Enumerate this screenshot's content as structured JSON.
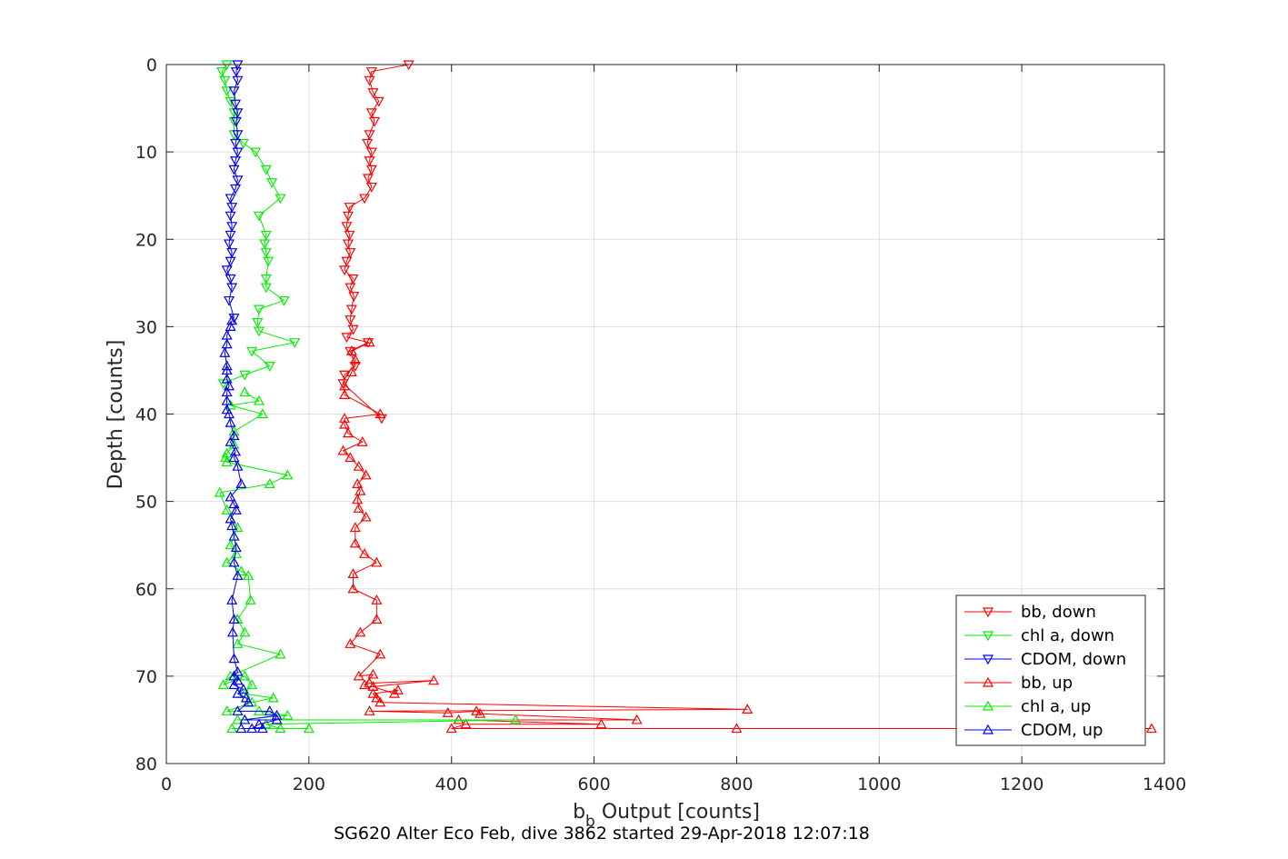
{
  "chart_data": {
    "type": "line",
    "xlabel_main": "b",
    "xlabel_sub": "b",
    "xlabel_rest": " Output [counts]",
    "ylabel": "Depth [counts]",
    "caption": "SG620 Alter Eco Feb, dive 3862 started 29-Apr-2018 12:07:18",
    "xlim": [
      0,
      1400
    ],
    "ylim": [
      0,
      80
    ],
    "y_reversed": true,
    "grid": true,
    "legend_position": "bottom-right",
    "xticks": [
      0,
      200,
      400,
      600,
      800,
      1000,
      1200,
      1400
    ],
    "yticks": [
      0,
      10,
      20,
      30,
      40,
      50,
      60,
      70,
      80
    ],
    "series": [
      {
        "name": "bb, down",
        "color": "#ff0000",
        "marker": "triangle-down",
        "points": [
          [
            340,
            0
          ],
          [
            288,
            0.8
          ],
          [
            285,
            1.8
          ],
          [
            290,
            3.2
          ],
          [
            298,
            4.2
          ],
          [
            288,
            5.5
          ],
          [
            292,
            6.5
          ],
          [
            285,
            8
          ],
          [
            282,
            9
          ],
          [
            288,
            10
          ],
          [
            285,
            11
          ],
          [
            288,
            12
          ],
          [
            283,
            13
          ],
          [
            288,
            14
          ],
          [
            278,
            15.3
          ],
          [
            257,
            16.3
          ],
          [
            255,
            17.3
          ],
          [
            253,
            18.5
          ],
          [
            257,
            19.5
          ],
          [
            255,
            20.5
          ],
          [
            258,
            21.5
          ],
          [
            253,
            22.5
          ],
          [
            250,
            23.5
          ],
          [
            262,
            24.5
          ],
          [
            258,
            25.5
          ],
          [
            263,
            26.5
          ],
          [
            260,
            28
          ],
          [
            258,
            29.2
          ],
          [
            262,
            30.3
          ],
          [
            253,
            31.2
          ],
          [
            283,
            31.8
          ],
          [
            258,
            32.8
          ],
          [
            265,
            34.5
          ],
          [
            250,
            35.5
          ],
          [
            248,
            36.5
          ],
          [
            302,
            40.5
          ]
        ]
      },
      {
        "name": "chl a, down",
        "color": "#00ee00",
        "marker": "triangle-down",
        "points": [
          [
            85,
            0
          ],
          [
            78,
            0.8
          ],
          [
            82,
            1.8
          ],
          [
            85,
            3
          ],
          [
            90,
            4.2
          ],
          [
            95,
            5.5
          ],
          [
            95,
            6.5
          ],
          [
            95,
            8
          ],
          [
            108,
            9
          ],
          [
            125,
            10
          ],
          [
            140,
            12
          ],
          [
            148,
            13.5
          ],
          [
            160,
            15.3
          ],
          [
            130,
            17.3
          ],
          [
            140,
            19.5
          ],
          [
            138,
            20.5
          ],
          [
            140,
            21.5
          ],
          [
            143,
            22.5
          ],
          [
            140,
            24.5
          ],
          [
            140,
            25.5
          ],
          [
            165,
            27
          ],
          [
            130,
            28
          ],
          [
            128,
            29.5
          ],
          [
            130,
            30.5
          ],
          [
            180,
            31.8
          ],
          [
            120,
            32.8
          ],
          [
            145,
            34.5
          ],
          [
            110,
            35.5
          ],
          [
            80,
            36.5
          ]
        ]
      },
      {
        "name": "CDOM, down",
        "color": "#0000ee",
        "marker": "triangle-down",
        "points": [
          [
            100,
            0
          ],
          [
            98,
            0.8
          ],
          [
            100,
            1.8
          ],
          [
            95,
            3
          ],
          [
            97,
            4.5
          ],
          [
            100,
            5.5
          ],
          [
            98,
            6.5
          ],
          [
            100,
            8
          ],
          [
            97,
            9
          ],
          [
            100,
            10
          ],
          [
            97,
            11
          ],
          [
            95,
            12
          ],
          [
            100,
            13.2
          ],
          [
            97,
            14.2
          ],
          [
            90,
            15.3
          ],
          [
            92,
            16.3
          ],
          [
            90,
            17.3
          ],
          [
            92,
            18.5
          ],
          [
            90,
            19.5
          ],
          [
            88,
            20.5
          ],
          [
            92,
            21.5
          ],
          [
            90,
            22.5
          ],
          [
            85,
            23.5
          ],
          [
            90,
            24.5
          ],
          [
            92,
            25.5
          ],
          [
            88,
            27
          ],
          [
            95,
            29
          ]
        ]
      },
      {
        "name": "bb, up",
        "color": "#ff0000",
        "marker": "triangle-up",
        "points": [
          [
            1382,
            76
          ],
          [
            800,
            76
          ],
          [
            400,
            76
          ],
          [
            420,
            75.5
          ],
          [
            610,
            75.5
          ],
          [
            410,
            75
          ],
          [
            660,
            75
          ],
          [
            440,
            74.3
          ],
          [
            435,
            74
          ],
          [
            395,
            74.2
          ],
          [
            285,
            74
          ],
          [
            815,
            73.8
          ],
          [
            300,
            73
          ],
          [
            295,
            72.5
          ],
          [
            290,
            72
          ],
          [
            325,
            71.6
          ],
          [
            320,
            72
          ],
          [
            290,
            71.2
          ],
          [
            375,
            70.5
          ],
          [
            285,
            70.8
          ],
          [
            278,
            71
          ],
          [
            290,
            69.8
          ],
          [
            270,
            70
          ],
          [
            300,
            67.5
          ],
          [
            258,
            66.3
          ],
          [
            272,
            65
          ],
          [
            295,
            63.5
          ],
          [
            295,
            61.3
          ],
          [
            262,
            60
          ],
          [
            262,
            58.3
          ],
          [
            295,
            57
          ],
          [
            278,
            56
          ],
          [
            265,
            54.8
          ],
          [
            265,
            53
          ],
          [
            280,
            51.8
          ],
          [
            270,
            50.8
          ],
          [
            268,
            49.8
          ],
          [
            272,
            48.8
          ],
          [
            268,
            48
          ],
          [
            280,
            47
          ],
          [
            270,
            46
          ],
          [
            258,
            45
          ],
          [
            248,
            44.2
          ],
          [
            275,
            43.2
          ],
          [
            255,
            42.2
          ],
          [
            250,
            41.2
          ],
          [
            250,
            40.5
          ],
          [
            300,
            40
          ],
          [
            250,
            37.8
          ],
          [
            250,
            36.8
          ],
          [
            260,
            35.2
          ],
          [
            265,
            33.8
          ],
          [
            260,
            32.8
          ],
          [
            285,
            31.8
          ]
        ]
      },
      {
        "name": "chl a, up",
        "color": "#00ee00",
        "marker": "triangle-up",
        "points": [
          [
            200,
            76
          ],
          [
            92,
            76
          ],
          [
            160,
            76
          ],
          [
            140,
            75.5
          ],
          [
            490,
            75
          ],
          [
            100,
            75
          ],
          [
            170,
            74.5
          ],
          [
            130,
            74
          ],
          [
            85,
            74
          ],
          [
            120,
            73
          ],
          [
            150,
            72.5
          ],
          [
            110,
            72
          ],
          [
            120,
            71
          ],
          [
            110,
            70
          ],
          [
            80,
            71
          ],
          [
            90,
            70
          ],
          [
            160,
            67.5
          ],
          [
            100,
            66.3
          ],
          [
            110,
            65
          ],
          [
            100,
            63.5
          ],
          [
            118,
            61.3
          ],
          [
            115,
            58.5
          ],
          [
            105,
            58
          ],
          [
            85,
            57
          ],
          [
            98,
            56
          ],
          [
            90,
            55
          ],
          [
            100,
            53
          ],
          [
            85,
            51
          ],
          [
            75,
            49
          ],
          [
            145,
            48
          ],
          [
            170,
            47
          ],
          [
            85,
            45.5
          ],
          [
            83,
            45
          ],
          [
            85,
            44.5
          ],
          [
            95,
            43.5
          ],
          [
            95,
            42
          ],
          [
            135,
            40
          ],
          [
            90,
            39
          ],
          [
            130,
            38.5
          ],
          [
            110,
            37.5
          ]
        ]
      },
      {
        "name": "CDOM, up",
        "color": "#0000ee",
        "marker": "triangle-up",
        "points": [
          [
            105,
            76
          ],
          [
            135,
            76
          ],
          [
            120,
            76
          ],
          [
            130,
            75.5
          ],
          [
            155,
            75
          ],
          [
            110,
            75
          ],
          [
            155,
            74.5
          ],
          [
            145,
            74
          ],
          [
            100,
            74
          ],
          [
            115,
            73
          ],
          [
            112,
            72.5
          ],
          [
            100,
            72
          ],
          [
            108,
            71.5
          ],
          [
            95,
            71
          ],
          [
            100,
            70.5
          ],
          [
            95,
            70
          ],
          [
            100,
            69.5
          ],
          [
            95,
            68
          ],
          [
            93,
            65
          ],
          [
            95,
            63.5
          ],
          [
            92,
            61.3
          ],
          [
            100,
            58.5
          ],
          [
            95,
            57
          ],
          [
            98,
            55.3
          ],
          [
            95,
            54
          ],
          [
            92,
            52.8
          ],
          [
            90,
            52
          ],
          [
            98,
            51
          ],
          [
            95,
            50.3
          ],
          [
            90,
            49.5
          ],
          [
            105,
            48
          ],
          [
            100,
            46
          ],
          [
            95,
            45
          ],
          [
            97,
            44.3
          ],
          [
            90,
            43.2
          ],
          [
            95,
            42.5
          ],
          [
            90,
            41
          ],
          [
            88,
            40
          ],
          [
            85,
            39.5
          ],
          [
            85,
            38.5
          ],
          [
            85,
            37.5
          ],
          [
            88,
            36.8
          ],
          [
            85,
            36
          ],
          [
            85,
            35
          ],
          [
            85,
            34.5
          ],
          [
            82,
            33
          ],
          [
            85,
            32
          ],
          [
            85,
            31
          ],
          [
            90,
            30
          ],
          [
            92,
            29.3
          ]
        ]
      }
    ]
  }
}
